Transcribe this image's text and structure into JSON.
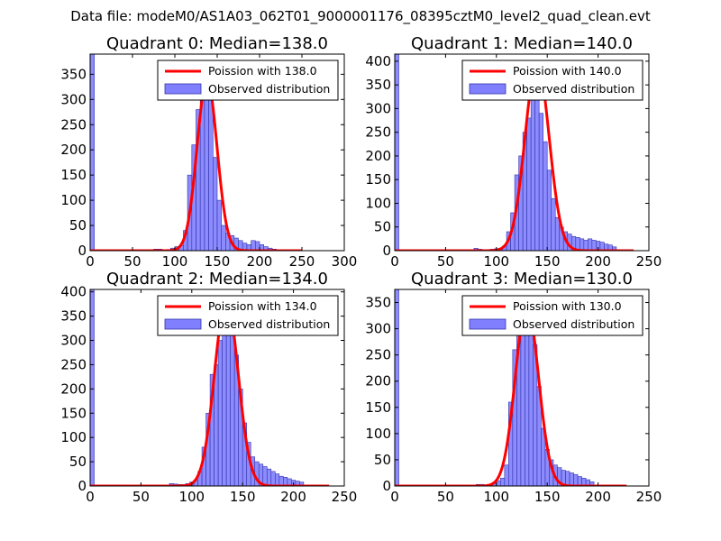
{
  "figure": {
    "suptitle": "Data file: modeM0/AS1A03_062T01_9000001176_08395cztM0_level2_quad_clean.evt"
  },
  "colors": {
    "hist_fill": "#8080ff",
    "hist_edge": "#3333aa",
    "fit_line": "#ff0000"
  },
  "chart_data": [
    {
      "type": "bar",
      "title": "Quadrant 0: Median=138.0",
      "xlim": [
        0,
        300
      ],
      "ylim": [
        0,
        390
      ],
      "xticks": [
        0,
        50,
        100,
        150,
        200,
        250,
        300
      ],
      "yticks": [
        0,
        50,
        100,
        150,
        200,
        250,
        300,
        350
      ],
      "xticklabels": [
        "0",
        "50",
        "100",
        "150",
        "200",
        "250",
        "300"
      ],
      "yticklabels": [
        "0",
        "50",
        "100",
        "150",
        "200",
        "250",
        "300",
        "350"
      ],
      "legend": [
        "Poission with 138.0",
        "Observed distribution"
      ],
      "legend_loc": "upper right",
      "poisson_mean": 138,
      "poisson_peak": 340,
      "poisson_sigma": 11.8,
      "poisson_range": [
        0,
        250
      ],
      "bin_width": 5,
      "bins": [
        [
          0,
          390
        ],
        [
          75,
          3
        ],
        [
          80,
          3
        ],
        [
          85,
          2
        ],
        [
          90,
          2
        ],
        [
          95,
          5
        ],
        [
          100,
          8
        ],
        [
          105,
          10
        ],
        [
          110,
          40
        ],
        [
          115,
          150
        ],
        [
          120,
          210
        ],
        [
          125,
          280
        ],
        [
          130,
          320
        ],
        [
          135,
          340
        ],
        [
          140,
          300
        ],
        [
          145,
          185
        ],
        [
          150,
          100
        ],
        [
          155,
          50
        ],
        [
          160,
          35
        ],
        [
          165,
          30
        ],
        [
          170,
          25
        ],
        [
          175,
          20
        ],
        [
          180,
          15
        ],
        [
          185,
          12
        ],
        [
          190,
          20
        ],
        [
          195,
          18
        ],
        [
          200,
          12
        ],
        [
          205,
          8
        ],
        [
          210,
          5
        ],
        [
          215,
          3
        ]
      ]
    },
    {
      "type": "bar",
      "title": "Quadrant 1: Median=140.0",
      "xlim": [
        0,
        250
      ],
      "ylim": [
        0,
        415
      ],
      "xticks": [
        0,
        50,
        100,
        150,
        200,
        250
      ],
      "yticks": [
        0,
        50,
        100,
        150,
        200,
        250,
        300,
        350,
        400
      ],
      "xticklabels": [
        "0",
        "50",
        "100",
        "150",
        "200",
        "250"
      ],
      "yticklabels": [
        "0",
        "50",
        "100",
        "150",
        "200",
        "250",
        "300",
        "350",
        "400"
      ],
      "legend": [
        "Poission with 140.0",
        "Observed distribution"
      ],
      "legend_loc": "upper right",
      "poisson_mean": 140,
      "poisson_peak": 398,
      "poisson_sigma": 11.8,
      "poisson_range": [
        0,
        235
      ],
      "bin_width": 4,
      "bins": [
        [
          0,
          415
        ],
        [
          78,
          5
        ],
        [
          82,
          3
        ],
        [
          86,
          2
        ],
        [
          90,
          2
        ],
        [
          94,
          3
        ],
        [
          98,
          4
        ],
        [
          102,
          5
        ],
        [
          106,
          10
        ],
        [
          110,
          40
        ],
        [
          114,
          80
        ],
        [
          118,
          160
        ],
        [
          122,
          200
        ],
        [
          126,
          250
        ],
        [
          130,
          280
        ],
        [
          134,
          330
        ],
        [
          138,
          340
        ],
        [
          142,
          290
        ],
        [
          146,
          230
        ],
        [
          150,
          170
        ],
        [
          154,
          110
        ],
        [
          158,
          70
        ],
        [
          162,
          50
        ],
        [
          166,
          40
        ],
        [
          170,
          35
        ],
        [
          174,
          30
        ],
        [
          178,
          28
        ],
        [
          182,
          25
        ],
        [
          186,
          22
        ],
        [
          190,
          25
        ],
        [
          194,
          22
        ],
        [
          198,
          20
        ],
        [
          202,
          18
        ],
        [
          206,
          14
        ],
        [
          210,
          12
        ],
        [
          214,
          8
        ]
      ]
    },
    {
      "type": "bar",
      "title": "Quadrant 2: Median=134.0",
      "xlim": [
        0,
        250
      ],
      "ylim": [
        0,
        405
      ],
      "xticks": [
        0,
        50,
        100,
        150,
        200,
        250
      ],
      "yticks": [
        0,
        50,
        100,
        150,
        200,
        250,
        300,
        350,
        400
      ],
      "xticklabels": [
        "0",
        "50",
        "100",
        "150",
        "200",
        "250"
      ],
      "yticklabels": [
        "0",
        "50",
        "100",
        "150",
        "200",
        "250",
        "300",
        "350",
        "400"
      ],
      "legend": [
        "Poission with 134.0",
        "Observed distribution"
      ],
      "legend_loc": "upper right",
      "poisson_mean": 134,
      "poisson_peak": 385,
      "poisson_sigma": 11.6,
      "poisson_range": [
        0,
        235
      ],
      "bin_width": 4,
      "bins": [
        [
          0,
          405
        ],
        [
          78,
          5
        ],
        [
          82,
          4
        ],
        [
          86,
          3
        ],
        [
          90,
          3
        ],
        [
          94,
          5
        ],
        [
          98,
          8
        ],
        [
          102,
          12
        ],
        [
          106,
          30
        ],
        [
          110,
          80
        ],
        [
          114,
          150
        ],
        [
          118,
          230
        ],
        [
          122,
          250
        ],
        [
          126,
          300
        ],
        [
          130,
          340
        ],
        [
          134,
          350
        ],
        [
          138,
          330
        ],
        [
          142,
          270
        ],
        [
          146,
          200
        ],
        [
          150,
          130
        ],
        [
          154,
          90
        ],
        [
          158,
          60
        ],
        [
          162,
          50
        ],
        [
          166,
          45
        ],
        [
          170,
          40
        ],
        [
          174,
          35
        ],
        [
          178,
          30
        ],
        [
          182,
          25
        ],
        [
          186,
          20
        ],
        [
          190,
          18
        ],
        [
          194,
          15
        ],
        [
          198,
          12
        ],
        [
          202,
          10
        ],
        [
          206,
          8
        ]
      ]
    },
    {
      "type": "bar",
      "title": "Quadrant 3: Median=130.0",
      "xlim": [
        0,
        250
      ],
      "ylim": [
        0,
        375
      ],
      "xticks": [
        0,
        50,
        100,
        150,
        200,
        250
      ],
      "yticks": [
        0,
        50,
        100,
        150,
        200,
        250,
        300,
        350
      ],
      "xticklabels": [
        "0",
        "50",
        "100",
        "150",
        "200",
        "250"
      ],
      "yticklabels": [
        "0",
        "50",
        "100",
        "150",
        "200",
        "250",
        "300",
        "350"
      ],
      "legend": [
        "Poission with 130.0",
        "Observed distribution"
      ],
      "legend_loc": "upper right",
      "poisson_mean": 130,
      "poisson_peak": 345,
      "poisson_sigma": 11.4,
      "poisson_range": [
        0,
        228
      ],
      "bin_width": 4,
      "bins": [
        [
          0,
          375
        ],
        [
          80,
          3
        ],
        [
          84,
          3
        ],
        [
          88,
          2
        ],
        [
          92,
          3
        ],
        [
          96,
          5
        ],
        [
          100,
          10
        ],
        [
          104,
          15
        ],
        [
          108,
          40
        ],
        [
          112,
          160
        ],
        [
          116,
          260
        ],
        [
          120,
          300
        ],
        [
          124,
          290
        ],
        [
          128,
          340
        ],
        [
          132,
          320
        ],
        [
          136,
          270
        ],
        [
          140,
          190
        ],
        [
          144,
          110
        ],
        [
          148,
          70
        ],
        [
          152,
          50
        ],
        [
          156,
          40
        ],
        [
          160,
          35
        ],
        [
          164,
          30
        ],
        [
          168,
          28
        ],
        [
          172,
          25
        ],
        [
          176,
          22
        ],
        [
          180,
          18
        ],
        [
          184,
          15
        ],
        [
          188,
          12
        ],
        [
          192,
          8
        ]
      ]
    }
  ]
}
